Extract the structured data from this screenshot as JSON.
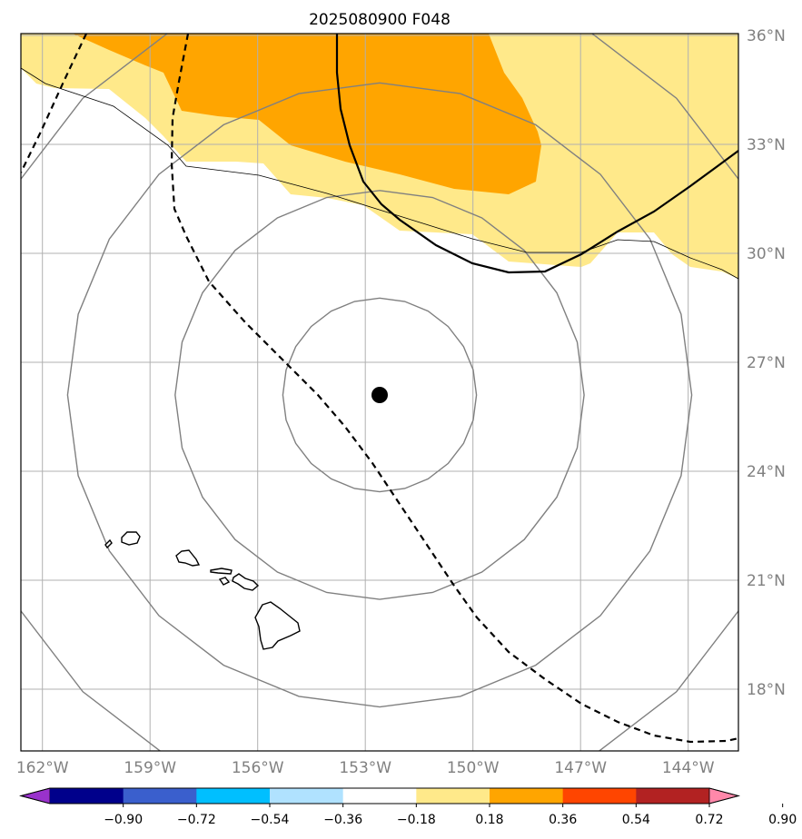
{
  "title": "2025080900 F048",
  "lat_labels": [
    {
      "lat": 36,
      "label": "36°N"
    },
    {
      "lat": 33,
      "label": "33°N"
    },
    {
      "lat": 30,
      "label": "30°N"
    },
    {
      "lat": 27,
      "label": "27°N"
    },
    {
      "lat": 24,
      "label": "24°N"
    },
    {
      "lat": 21,
      "label": "21°N"
    },
    {
      "lat": 18,
      "label": "18°N"
    }
  ],
  "lon_labels": [
    {
      "lon": -162,
      "label": "162°W"
    },
    {
      "lon": -159,
      "label": "159°W"
    },
    {
      "lon": -156,
      "label": "156°W"
    },
    {
      "lon": -153,
      "label": "153°W"
    },
    {
      "lon": -150,
      "label": "150°W"
    },
    {
      "lon": -147,
      "label": "147°W"
    },
    {
      "lon": -144,
      "label": "144°W"
    }
  ],
  "extent": {
    "lon_min": -162.6,
    "lon_max": -142.6,
    "lat_min": 16.3,
    "lat_max": 36.05
  },
  "storm_center": {
    "lon": -152.6,
    "lat": 26.1
  },
  "range_rings_deg": [
    2.7,
    5.7,
    8.7,
    11.7
  ],
  "colorbar": {
    "ticks": [
      "−0.90",
      "−0.72",
      "−0.54",
      "−0.36",
      "−0.18",
      "0.18",
      "0.36",
      "0.54",
      "0.72",
      "0.90"
    ],
    "colors": [
      "#9932cc",
      "#00008b",
      "#3a5fcd",
      "#00bfff",
      "#b0e2ff",
      "#ffffff",
      "#ffe98a",
      "#ffa500",
      "#ff4500",
      "#b22222",
      "#ff88aa"
    ]
  },
  "colors": {
    "fill_low": "#ffe98a",
    "fill_high": "#ffa500",
    "grid": "#b0b0b0",
    "ring": "#808080",
    "label": "#808080"
  }
}
